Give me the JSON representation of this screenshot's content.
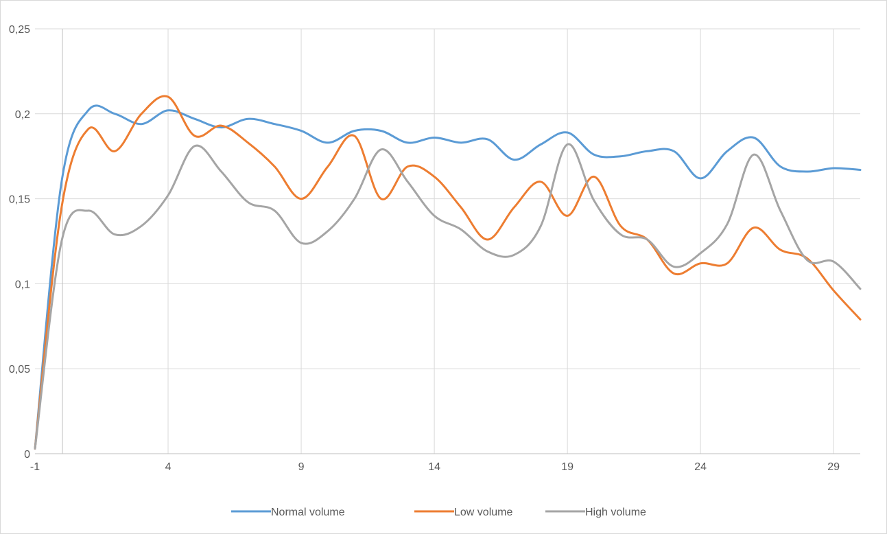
{
  "chart_data": {
    "type": "line",
    "title": "",
    "xlabel": "",
    "ylabel": "",
    "xlim": [
      -1,
      30
    ],
    "ylim": [
      0,
      0.25
    ],
    "x_ticks": [
      -1,
      4,
      9,
      14,
      19,
      24,
      29
    ],
    "x_tick_labels": [
      "-1",
      "4",
      "9",
      "14",
      "19",
      "24",
      "29"
    ],
    "y_ticks": [
      0,
      0.05,
      0.1,
      0.15,
      0.2,
      0.25
    ],
    "y_tick_labels": [
      "0",
      "0,05",
      "0,1",
      "0,15",
      "0,2",
      "0,25"
    ],
    "grid": true,
    "legend_position": "bottom",
    "x": [
      -1,
      0,
      1,
      2,
      3,
      4,
      5,
      6,
      7,
      8,
      9,
      10,
      11,
      12,
      13,
      14,
      15,
      16,
      17,
      18,
      19,
      20,
      21,
      22,
      23,
      24,
      25,
      26,
      27,
      28,
      29,
      30
    ],
    "series": [
      {
        "name": "Normal volume",
        "color": "#5b9bd5",
        "values": [
          0.003,
          0.16,
          0.202,
          0.2,
          0.194,
          0.202,
          0.197,
          0.192,
          0.197,
          0.194,
          0.19,
          0.183,
          0.19,
          0.19,
          0.183,
          0.186,
          0.183,
          0.185,
          0.173,
          0.182,
          0.189,
          0.176,
          0.175,
          0.178,
          0.178,
          0.162,
          0.178,
          0.186,
          0.169,
          0.166,
          0.168,
          0.167
        ]
      },
      {
        "name": "Low volume",
        "color": "#ed7d31",
        "values": [
          0.003,
          0.145,
          0.191,
          0.178,
          0.2,
          0.21,
          0.187,
          0.193,
          0.183,
          0.169,
          0.15,
          0.169,
          0.187,
          0.15,
          0.169,
          0.163,
          0.145,
          0.126,
          0.145,
          0.16,
          0.14,
          0.163,
          0.134,
          0.126,
          0.106,
          0.112,
          0.112,
          0.133,
          0.12,
          0.115,
          0.096,
          0.079
        ]
      },
      {
        "name": "High volume",
        "color": "#a5a5a5",
        "values": [
          0.003,
          0.125,
          0.143,
          0.129,
          0.134,
          0.152,
          0.181,
          0.166,
          0.148,
          0.143,
          0.124,
          0.131,
          0.15,
          0.179,
          0.16,
          0.14,
          0.132,
          0.119,
          0.117,
          0.134,
          0.182,
          0.149,
          0.129,
          0.126,
          0.11,
          0.118,
          0.135,
          0.176,
          0.143,
          0.114,
          0.113,
          0.097
        ]
      }
    ]
  }
}
